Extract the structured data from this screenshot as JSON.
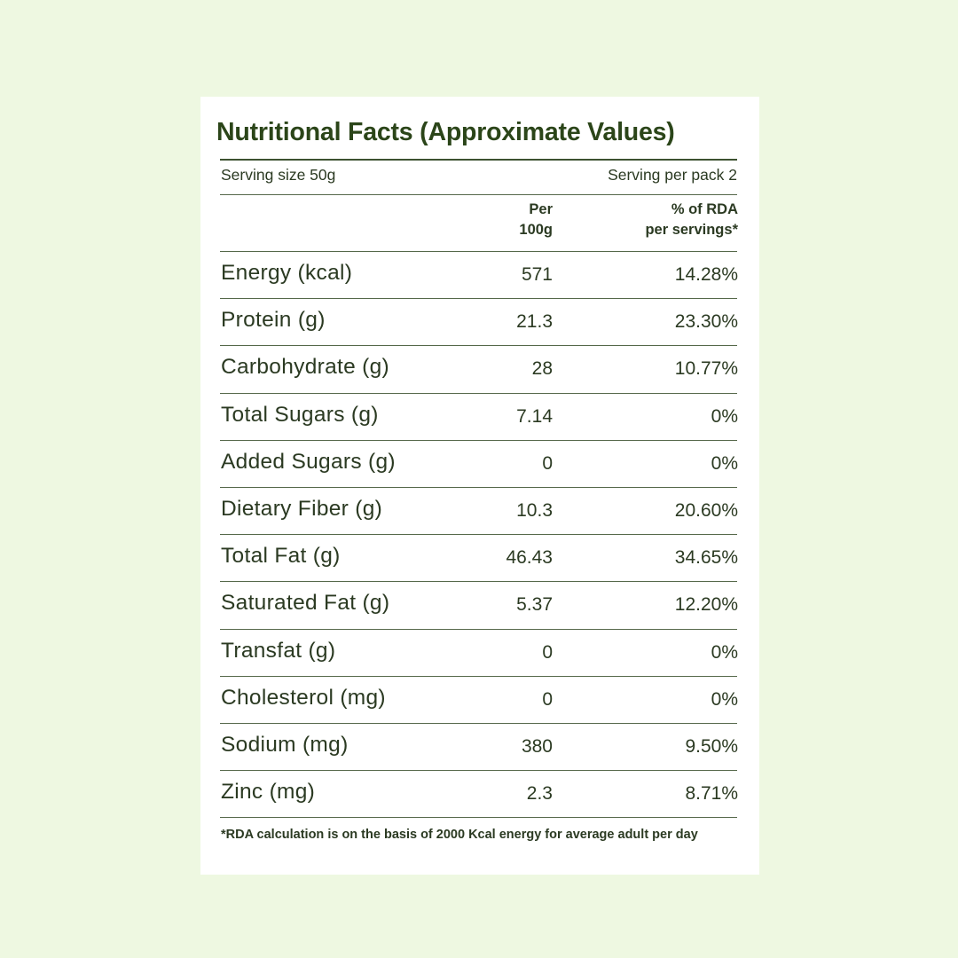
{
  "title": "Nutritional Facts (Approximate Values)",
  "serving": {
    "size_label": "Serving size 50g",
    "per_pack_label": "Serving per pack 2"
  },
  "columns": {
    "per_line1": "Per",
    "per_line2": "100g",
    "rda_line1": "% of RDA",
    "rda_line2": "per servings*"
  },
  "rows": [
    {
      "name": "Energy (kcal)",
      "per": "571",
      "rda": "14.28%"
    },
    {
      "name": "Protein (g)",
      "per": "21.3",
      "rda": "23.30%"
    },
    {
      "name": "Carbohydrate (g)",
      "per": "28",
      "rda": "10.77%"
    },
    {
      "name": "Total Sugars (g)",
      "per": "7.14",
      "rda": "0%"
    },
    {
      "name": "Added Sugars (g)",
      "per": "0",
      "rda": "0%"
    },
    {
      "name": "Dietary Fiber (g)",
      "per": "10.3",
      "rda": "20.60%"
    },
    {
      "name": "Total Fat (g)",
      "per": "46.43",
      "rda": "34.65%"
    },
    {
      "name": "Saturated Fat (g)",
      "per": "5.37",
      "rda": "12.20%"
    },
    {
      "name": "Transfat (g)",
      "per": "0",
      "rda": "0%"
    },
    {
      "name": "Cholesterol (mg)",
      "per": "0",
      "rda": "0%"
    },
    {
      "name": "Sodium (mg)",
      "per": "380",
      "rda": "9.50%"
    },
    {
      "name": "Zinc (mg)",
      "per": "2.3",
      "rda": "8.71%"
    }
  ],
  "footnote": "*RDA calculation is on the basis of 2000 Kcal energy for average adult per day",
  "colors": {
    "background": "#eef8e1",
    "card": "#ffffff",
    "title": "#2b4519",
    "text": "#2b3a22"
  }
}
